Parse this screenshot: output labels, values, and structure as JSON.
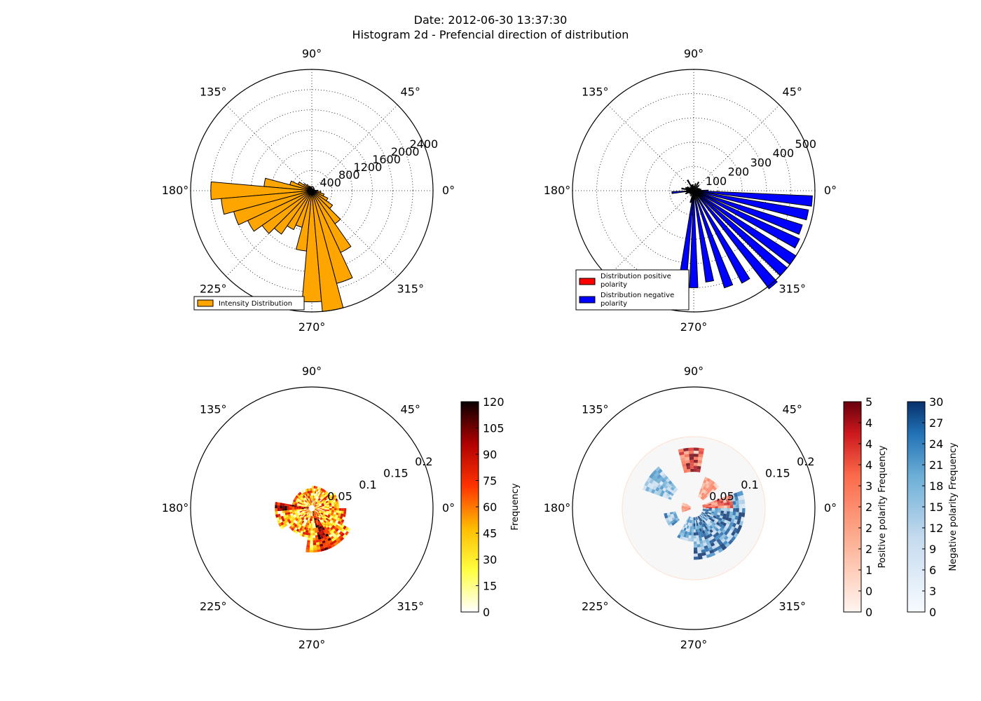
{
  "figure": {
    "title_line1": "Date: 2012-06-30 13:37:30",
    "title_line2": "Histogram 2d - Prefencial direction of distribution"
  },
  "angle_labels": [
    "0°",
    "45°",
    "90°",
    "135°",
    "180°",
    "225°",
    "270°",
    "315°"
  ],
  "chart_data": [
    {
      "type": "bar",
      "subtype": "polar-histogram",
      "panel": "top-left",
      "rmax": 2400,
      "radial_ticks": [
        0,
        400,
        800,
        1200,
        1600,
        2000,
        2400
      ],
      "grid": true,
      "legend_position": "lower-left",
      "series": [
        {
          "name": "Intensity Distribution",
          "color": "#FFA500",
          "bar_width_deg": 10,
          "angles_deg": [
            0,
            10,
            20,
            30,
            40,
            50,
            60,
            70,
            80,
            90,
            100,
            110,
            120,
            130,
            140,
            150,
            160,
            170,
            180,
            190,
            200,
            210,
            220,
            230,
            240,
            250,
            260,
            270,
            280,
            290,
            300,
            310,
            320,
            330,
            340,
            350
          ],
          "values": [
            120,
            60,
            50,
            40,
            40,
            40,
            40,
            40,
            40,
            50,
            60,
            80,
            100,
            150,
            200,
            300,
            450,
            950,
            2000,
            1800,
            1600,
            1400,
            1200,
            1050,
            850,
            750,
            1200,
            2200,
            2400,
            1900,
            1350,
            800,
            500,
            350,
            250,
            180
          ]
        }
      ]
    },
    {
      "type": "bar",
      "subtype": "polar-histogram",
      "panel": "top-right",
      "rmax": 500,
      "radial_ticks": [
        100,
        200,
        300,
        400,
        500
      ],
      "grid": true,
      "legend_position": "lower-left",
      "series": [
        {
          "name": "Distribution positive\n polarity",
          "color": "#FF0000",
          "bar_width_deg": 5,
          "angles_deg": [],
          "values": []
        },
        {
          "name": "Distribution negative\n polarity",
          "color": "#0000FF",
          "bar_width_deg": 5,
          "angles_deg": [
            0,
            10,
            20,
            30,
            45,
            60,
            75,
            90,
            100,
            110,
            120,
            135,
            150,
            160,
            170,
            175,
            185,
            190,
            200,
            210,
            225,
            240,
            255,
            263,
            270,
            280,
            290,
            300,
            310,
            318,
            325,
            333,
            340,
            348,
            355
          ],
          "values": [
            60,
            30,
            25,
            20,
            30,
            40,
            30,
            20,
            25,
            25,
            50,
            20,
            30,
            35,
            50,
            30,
            90,
            30,
            35,
            20,
            20,
            25,
            50,
            480,
            400,
            380,
            420,
            430,
            510,
            500,
            500,
            480,
            470,
            480,
            490
          ]
        }
      ]
    },
    {
      "type": "heatmap",
      "subtype": "polar-histogram-2d",
      "panel": "bottom-left",
      "rmax": 0.2,
      "radial_ticks": [
        0.05,
        0.1,
        0.15,
        0.2
      ],
      "colormap": "hot_r",
      "colorbar": {
        "label": "Frequency",
        "ticks": [
          0,
          15,
          30,
          45,
          60,
          75,
          90,
          105,
          120
        ],
        "range": [
          0,
          120
        ]
      }
    },
    {
      "type": "heatmap",
      "subtype": "polar-histogram-2d",
      "panel": "bottom-right",
      "rmax": 0.2,
      "radial_ticks": [
        0.05,
        0.1,
        0.15,
        0.2
      ],
      "colorbars": [
        {
          "label": "Positive polarity Frequency",
          "colormap": "Reds",
          "tick_labels": [
            "0",
            "0",
            "1",
            "2",
            "2",
            "2",
            "3",
            "4",
            "4",
            "4",
            "5"
          ],
          "range": [
            0,
            5
          ]
        },
        {
          "label": "Negative polarity Frequency",
          "colormap": "Blues",
          "tick_labels": [
            "0",
            "3",
            "6",
            "9",
            "12",
            "15",
            "18",
            "21",
            "24",
            "27",
            "30"
          ],
          "range": [
            0,
            30
          ]
        }
      ]
    }
  ]
}
